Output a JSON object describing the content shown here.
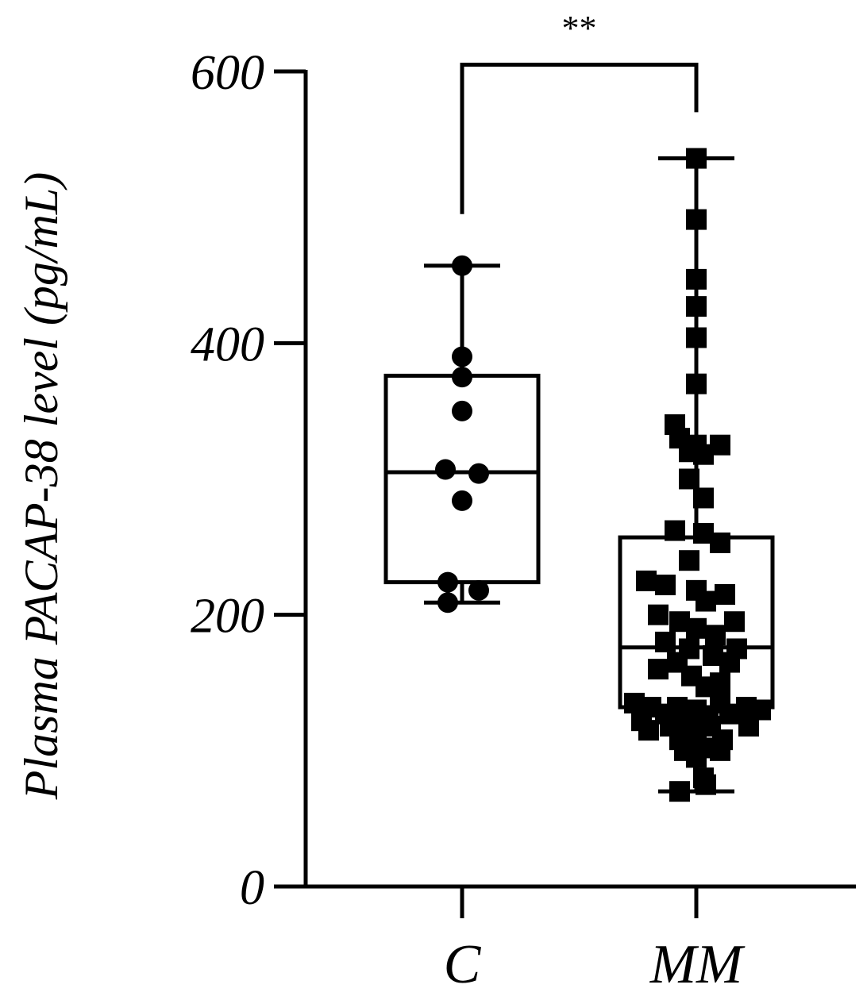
{
  "chart_data": {
    "type": "boxplot",
    "title": "",
    "xlabel": "",
    "ylabel": "Plasma PACAP-38 level (pg/mL)",
    "ylim": [
      0,
      600
    ],
    "yticks": [
      "0",
      "200",
      "400",
      "600"
    ],
    "grid": false,
    "legend": "none",
    "categories": [
      "C",
      "MM"
    ],
    "groups": [
      {
        "category": "C",
        "marker": "circle",
        "whisker_min": 209,
        "q1": 224,
        "median": 305,
        "q3": 376,
        "whisker_max": 457,
        "points": [
          {
            "x": 0.0,
            "y": 457
          },
          {
            "x": 0.0,
            "y": 390
          },
          {
            "x": 0.0,
            "y": 375
          },
          {
            "x": 0.0,
            "y": 350
          },
          {
            "x": -0.07,
            "y": 307
          },
          {
            "x": 0.07,
            "y": 304
          },
          {
            "x": 0.0,
            "y": 284
          },
          {
            "x": -0.06,
            "y": 224
          },
          {
            "x": 0.07,
            "y": 218
          },
          {
            "x": -0.06,
            "y": 209
          }
        ]
      },
      {
        "category": "MM",
        "marker": "square",
        "whisker_min": 70,
        "q1": 132,
        "median": 176,
        "q3": 257,
        "whisker_max": 536,
        "points": [
          {
            "x": 0.0,
            "y": 536
          },
          {
            "x": 0.0,
            "y": 491
          },
          {
            "x": 0.0,
            "y": 447
          },
          {
            "x": 0.0,
            "y": 427
          },
          {
            "x": 0.0,
            "y": 404
          },
          {
            "x": 0.0,
            "y": 370
          },
          {
            "x": -0.09,
            "y": 340
          },
          {
            "x": -0.07,
            "y": 330
          },
          {
            "x": 0.0,
            "y": 325
          },
          {
            "x": 0.1,
            "y": 325
          },
          {
            "x": -0.03,
            "y": 320
          },
          {
            "x": 0.03,
            "y": 318
          },
          {
            "x": -0.03,
            "y": 300
          },
          {
            "x": 0.03,
            "y": 286
          },
          {
            "x": -0.09,
            "y": 262
          },
          {
            "x": 0.03,
            "y": 260
          },
          {
            "x": 0.1,
            "y": 253
          },
          {
            "x": -0.03,
            "y": 240
          },
          {
            "x": -0.21,
            "y": 225
          },
          {
            "x": -0.13,
            "y": 222
          },
          {
            "x": 0.0,
            "y": 218
          },
          {
            "x": 0.12,
            "y": 215
          },
          {
            "x": 0.04,
            "y": 210
          },
          {
            "x": -0.16,
            "y": 200
          },
          {
            "x": -0.07,
            "y": 195
          },
          {
            "x": 0.16,
            "y": 195
          },
          {
            "x": 0.0,
            "y": 190
          },
          {
            "x": 0.08,
            "y": 185
          },
          {
            "x": -0.13,
            "y": 180
          },
          {
            "x": -0.03,
            "y": 175
          },
          {
            "x": 0.17,
            "y": 175
          },
          {
            "x": 0.07,
            "y": 170
          },
          {
            "x": -0.08,
            "y": 165
          },
          {
            "x": 0.14,
            "y": 165
          },
          {
            "x": -0.16,
            "y": 160
          },
          {
            "x": -0.02,
            "y": 155
          },
          {
            "x": 0.1,
            "y": 150
          },
          {
            "x": 0.04,
            "y": 147
          },
          {
            "x": -0.26,
            "y": 135
          },
          {
            "x": 0.1,
            "y": 135
          },
          {
            "x": -0.19,
            "y": 132
          },
          {
            "x": -0.08,
            "y": 132
          },
          {
            "x": 0.0,
            "y": 130
          },
          {
            "x": 0.21,
            "y": 132
          },
          {
            "x": 0.27,
            "y": 130
          },
          {
            "x": -0.13,
            "y": 127
          },
          {
            "x": 0.05,
            "y": 125
          },
          {
            "x": 0.14,
            "y": 127
          },
          {
            "x": -0.23,
            "y": 122
          },
          {
            "x": -0.03,
            "y": 120
          },
          {
            "x": 0.06,
            "y": 118
          },
          {
            "x": -0.11,
            "y": 118
          },
          {
            "x": -0.2,
            "y": 115
          },
          {
            "x": 0.22,
            "y": 118
          },
          {
            "x": 0.0,
            "y": 112
          },
          {
            "x": -0.07,
            "y": 108
          },
          {
            "x": 0.11,
            "y": 108
          },
          {
            "x": 0.03,
            "y": 102
          },
          {
            "x": -0.05,
            "y": 100
          },
          {
            "x": 0.1,
            "y": 100
          },
          {
            "x": 0.0,
            "y": 95
          },
          {
            "x": 0.03,
            "y": 80
          },
          {
            "x": 0.04,
            "y": 75
          },
          {
            "x": -0.07,
            "y": 70
          }
        ]
      }
    ],
    "annotation": {
      "text": "**",
      "between": [
        "C",
        "MM"
      ],
      "bracket_y": 605,
      "left_drop_to": 495,
      "right_drop_to": 570
    }
  }
}
